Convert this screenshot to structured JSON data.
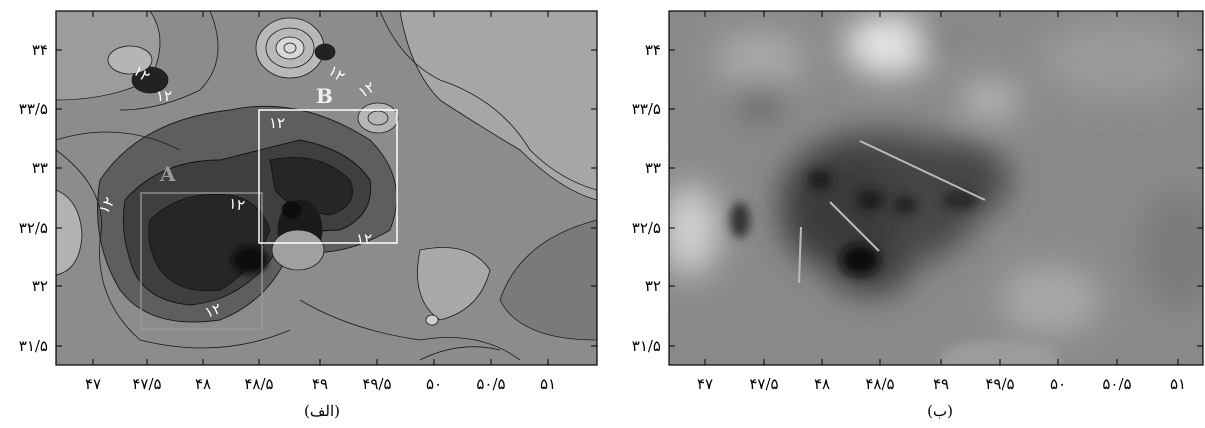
{
  "figure": {
    "panels": [
      {
        "id": "alef",
        "caption": "(الف)",
        "map_type": "contour",
        "frame_color": "#000000",
        "x_ticks": [
          "۴۷",
          "۴۷/۵",
          "۴۸",
          "۴۸/۵",
          "۴۹",
          "۴۹/۵",
          "۵۰",
          "۵۰/۵",
          "۵۱"
        ],
        "y_ticks": [
          "۳۴",
          "۳۳/۵",
          "۳۳",
          "۳۲/۵",
          "۳۲",
          "۳۱/۵"
        ],
        "boxes": [
          {
            "label": "A",
            "color": "#9a9a9a"
          },
          {
            "label": "B",
            "color": "#ffffff"
          }
        ],
        "contour_labels": [
          "۱۲",
          "۱۲",
          "۱۲",
          "۱۲",
          "۱۲",
          "۱۲",
          "۱۲",
          "۱۲",
          "۱۲"
        ]
      },
      {
        "id": "be",
        "caption": "(ب)",
        "map_type": "shaded-relief",
        "x_ticks": [
          "۴۷",
          "۴۷/۵",
          "۴۸",
          "۴۸/۵",
          "۴۹",
          "۴۹/۵",
          "۵۰",
          "۵۰/۵",
          "۵۱"
        ],
        "y_ticks": [
          "۳۴",
          "۳۳/۵",
          "۳۳",
          "۳۲/۵",
          "۳۲",
          "۳۱/۵"
        ],
        "lineament_color": "#bbbbbb"
      }
    ]
  }
}
